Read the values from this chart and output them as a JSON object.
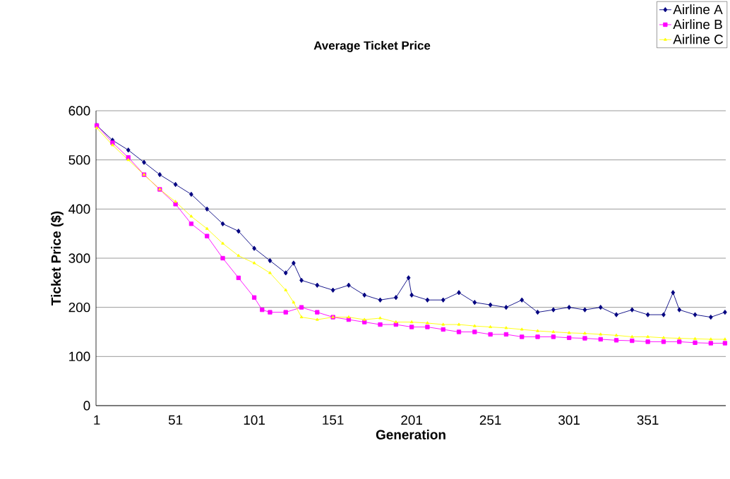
{
  "chart_data": {
    "type": "line",
    "title": "Average Ticket Price",
    "xlabel": "Generation",
    "ylabel": "Ticket Price ($)",
    "xlim": [
      0.5,
      400.5
    ],
    "xticks": [
      1,
      51,
      101,
      151,
      201,
      251,
      301,
      351
    ],
    "ylim": [
      0,
      600
    ],
    "yticks": [
      0,
      100,
      200,
      300,
      400,
      500,
      600
    ],
    "grid": "y",
    "legend": "top right",
    "series": [
      {
        "name": "Airline A",
        "color": "#000080",
        "marker": "diamond",
        "x": [
          1,
          11,
          21,
          31,
          41,
          51,
          61,
          71,
          81,
          91,
          101,
          111,
          121,
          126,
          131,
          141,
          151,
          161,
          171,
          181,
          191,
          199,
          201,
          211,
          221,
          231,
          241,
          251,
          261,
          271,
          281,
          291,
          301,
          311,
          321,
          331,
          341,
          351,
          361,
          367,
          371,
          381,
          391,
          400
        ],
        "values": [
          570,
          540,
          520,
          495,
          470,
          450,
          430,
          400,
          370,
          355,
          320,
          295,
          270,
          290,
          255,
          245,
          235,
          245,
          225,
          215,
          220,
          260,
          225,
          215,
          215,
          230,
          210,
          205,
          200,
          215,
          190,
          195,
          200,
          195,
          200,
          185,
          195,
          185,
          185,
          230,
          195,
          185,
          180,
          190
        ]
      },
      {
        "name": "Airline B",
        "color": "#ff00ff",
        "marker": "square",
        "x": [
          1,
          11,
          21,
          31,
          41,
          51,
          61,
          71,
          81,
          91,
          101,
          106,
          111,
          121,
          131,
          141,
          151,
          161,
          171,
          181,
          191,
          201,
          211,
          221,
          231,
          241,
          251,
          261,
          271,
          281,
          291,
          301,
          311,
          321,
          331,
          341,
          351,
          361,
          371,
          381,
          391,
          400
        ],
        "values": [
          570,
          535,
          505,
          470,
          440,
          410,
          370,
          345,
          300,
          260,
          220,
          195,
          190,
          190,
          200,
          190,
          180,
          175,
          170,
          165,
          165,
          160,
          160,
          155,
          150,
          150,
          145,
          145,
          140,
          140,
          140,
          138,
          137,
          135,
          133,
          132,
          130,
          130,
          130,
          128,
          127,
          127
        ]
      },
      {
        "name": "Airline C",
        "color": "#ffff00",
        "marker": "triangle",
        "x": [
          1,
          11,
          21,
          31,
          41,
          51,
          61,
          71,
          81,
          91,
          101,
          111,
          121,
          126,
          131,
          141,
          151,
          161,
          171,
          181,
          191,
          201,
          211,
          221,
          231,
          241,
          251,
          261,
          271,
          281,
          291,
          301,
          311,
          321,
          331,
          341,
          351,
          361,
          371,
          381,
          391,
          400
        ],
        "values": [
          565,
          530,
          500,
          470,
          440,
          415,
          385,
          360,
          330,
          305,
          290,
          270,
          235,
          210,
          180,
          175,
          180,
          180,
          175,
          178,
          170,
          170,
          168,
          165,
          165,
          162,
          160,
          158,
          155,
          152,
          150,
          148,
          147,
          145,
          143,
          140,
          140,
          138,
          137,
          136,
          135,
          135
        ]
      }
    ]
  }
}
